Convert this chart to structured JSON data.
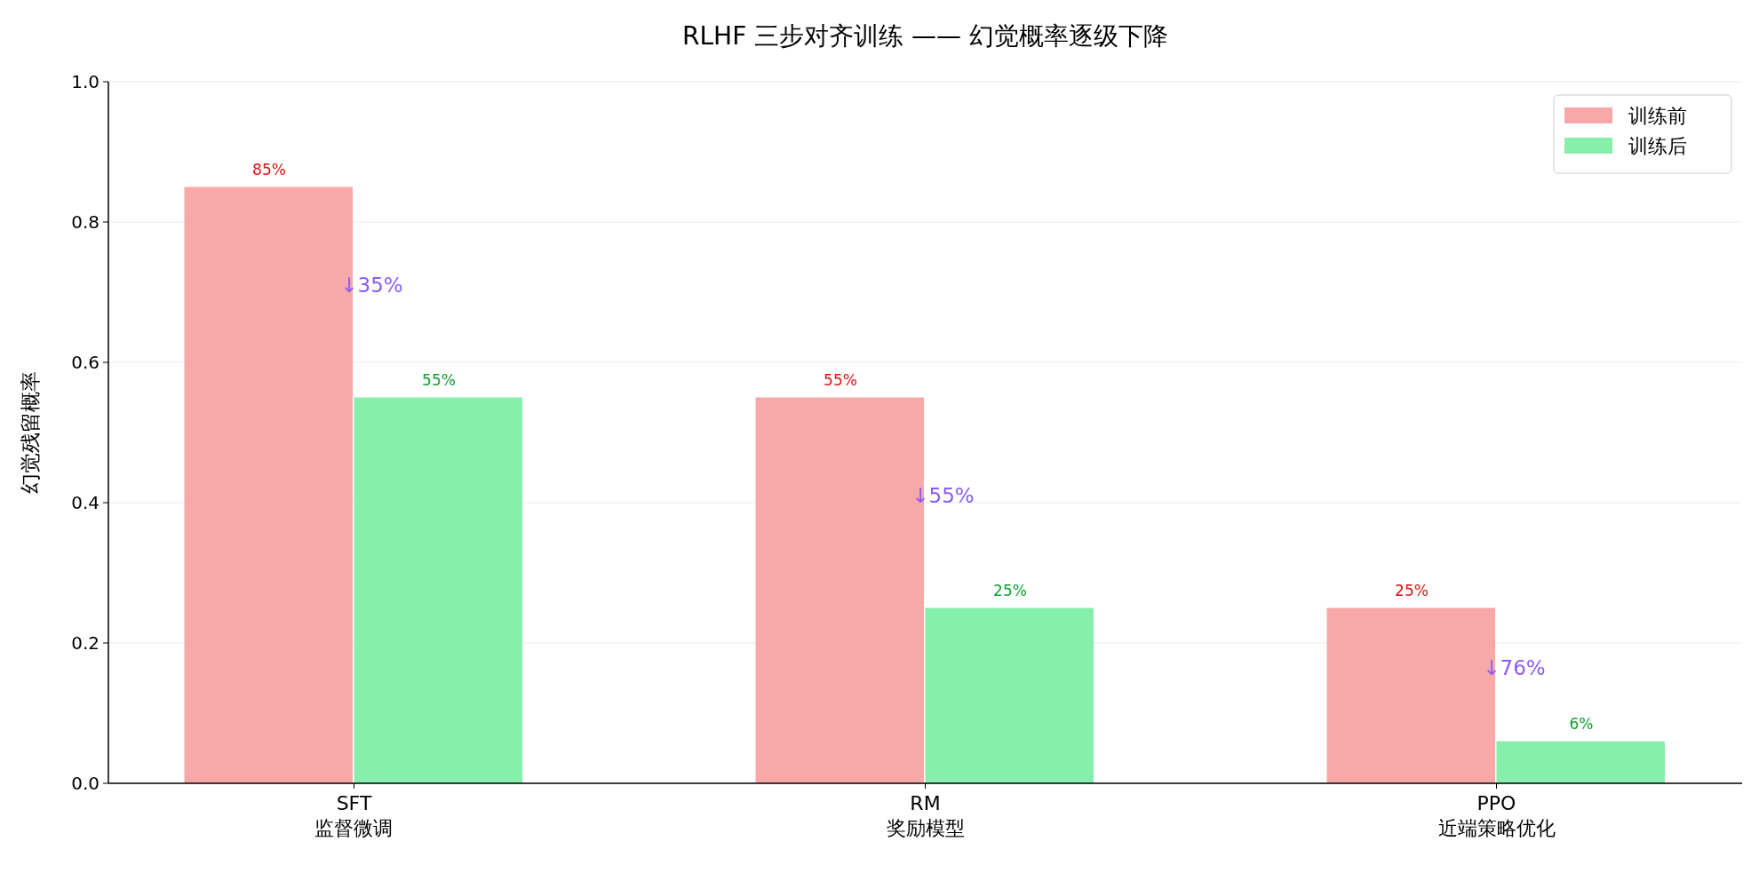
{
  "chart_data": {
    "type": "bar",
    "title": "RLHF 三步对齐训练 —— 幻觉概率逐级下降",
    "ylabel": "幻觉残留概率",
    "categories": [
      "SFT\n监督微调",
      "RM\n奖励模型",
      "PPO\n近端策略优化"
    ],
    "series": [
      {
        "name": "训练前",
        "color": "#f9a8a8",
        "values": [
          0.85,
          0.55,
          0.25
        ],
        "value_labels": [
          "85%",
          "55%",
          "25%"
        ]
      },
      {
        "name": "训练后",
        "color": "#86efac",
        "values": [
          0.55,
          0.25,
          0.06
        ],
        "value_labels": [
          "55%",
          "25%",
          "6%"
        ]
      }
    ],
    "annotations": [
      {
        "text": "↓35%",
        "x": "SFT\n监督微调",
        "y": 0.71
      },
      {
        "text": "↓55%",
        "x": "RM\n奖励模型",
        "y": 0.41
      },
      {
        "text": "↓76%",
        "x": "PPO\n近端策略优化",
        "y": 0.165
      }
    ],
    "ylim": [
      0,
      1
    ],
    "yticks": [
      {
        "value": 0,
        "label": "0.0"
      },
      0.2,
      0.4,
      0.6,
      0.8,
      {
        "value": 1,
        "label": "1.0"
      }
    ],
    "grid": "y",
    "legend": "top right"
  }
}
